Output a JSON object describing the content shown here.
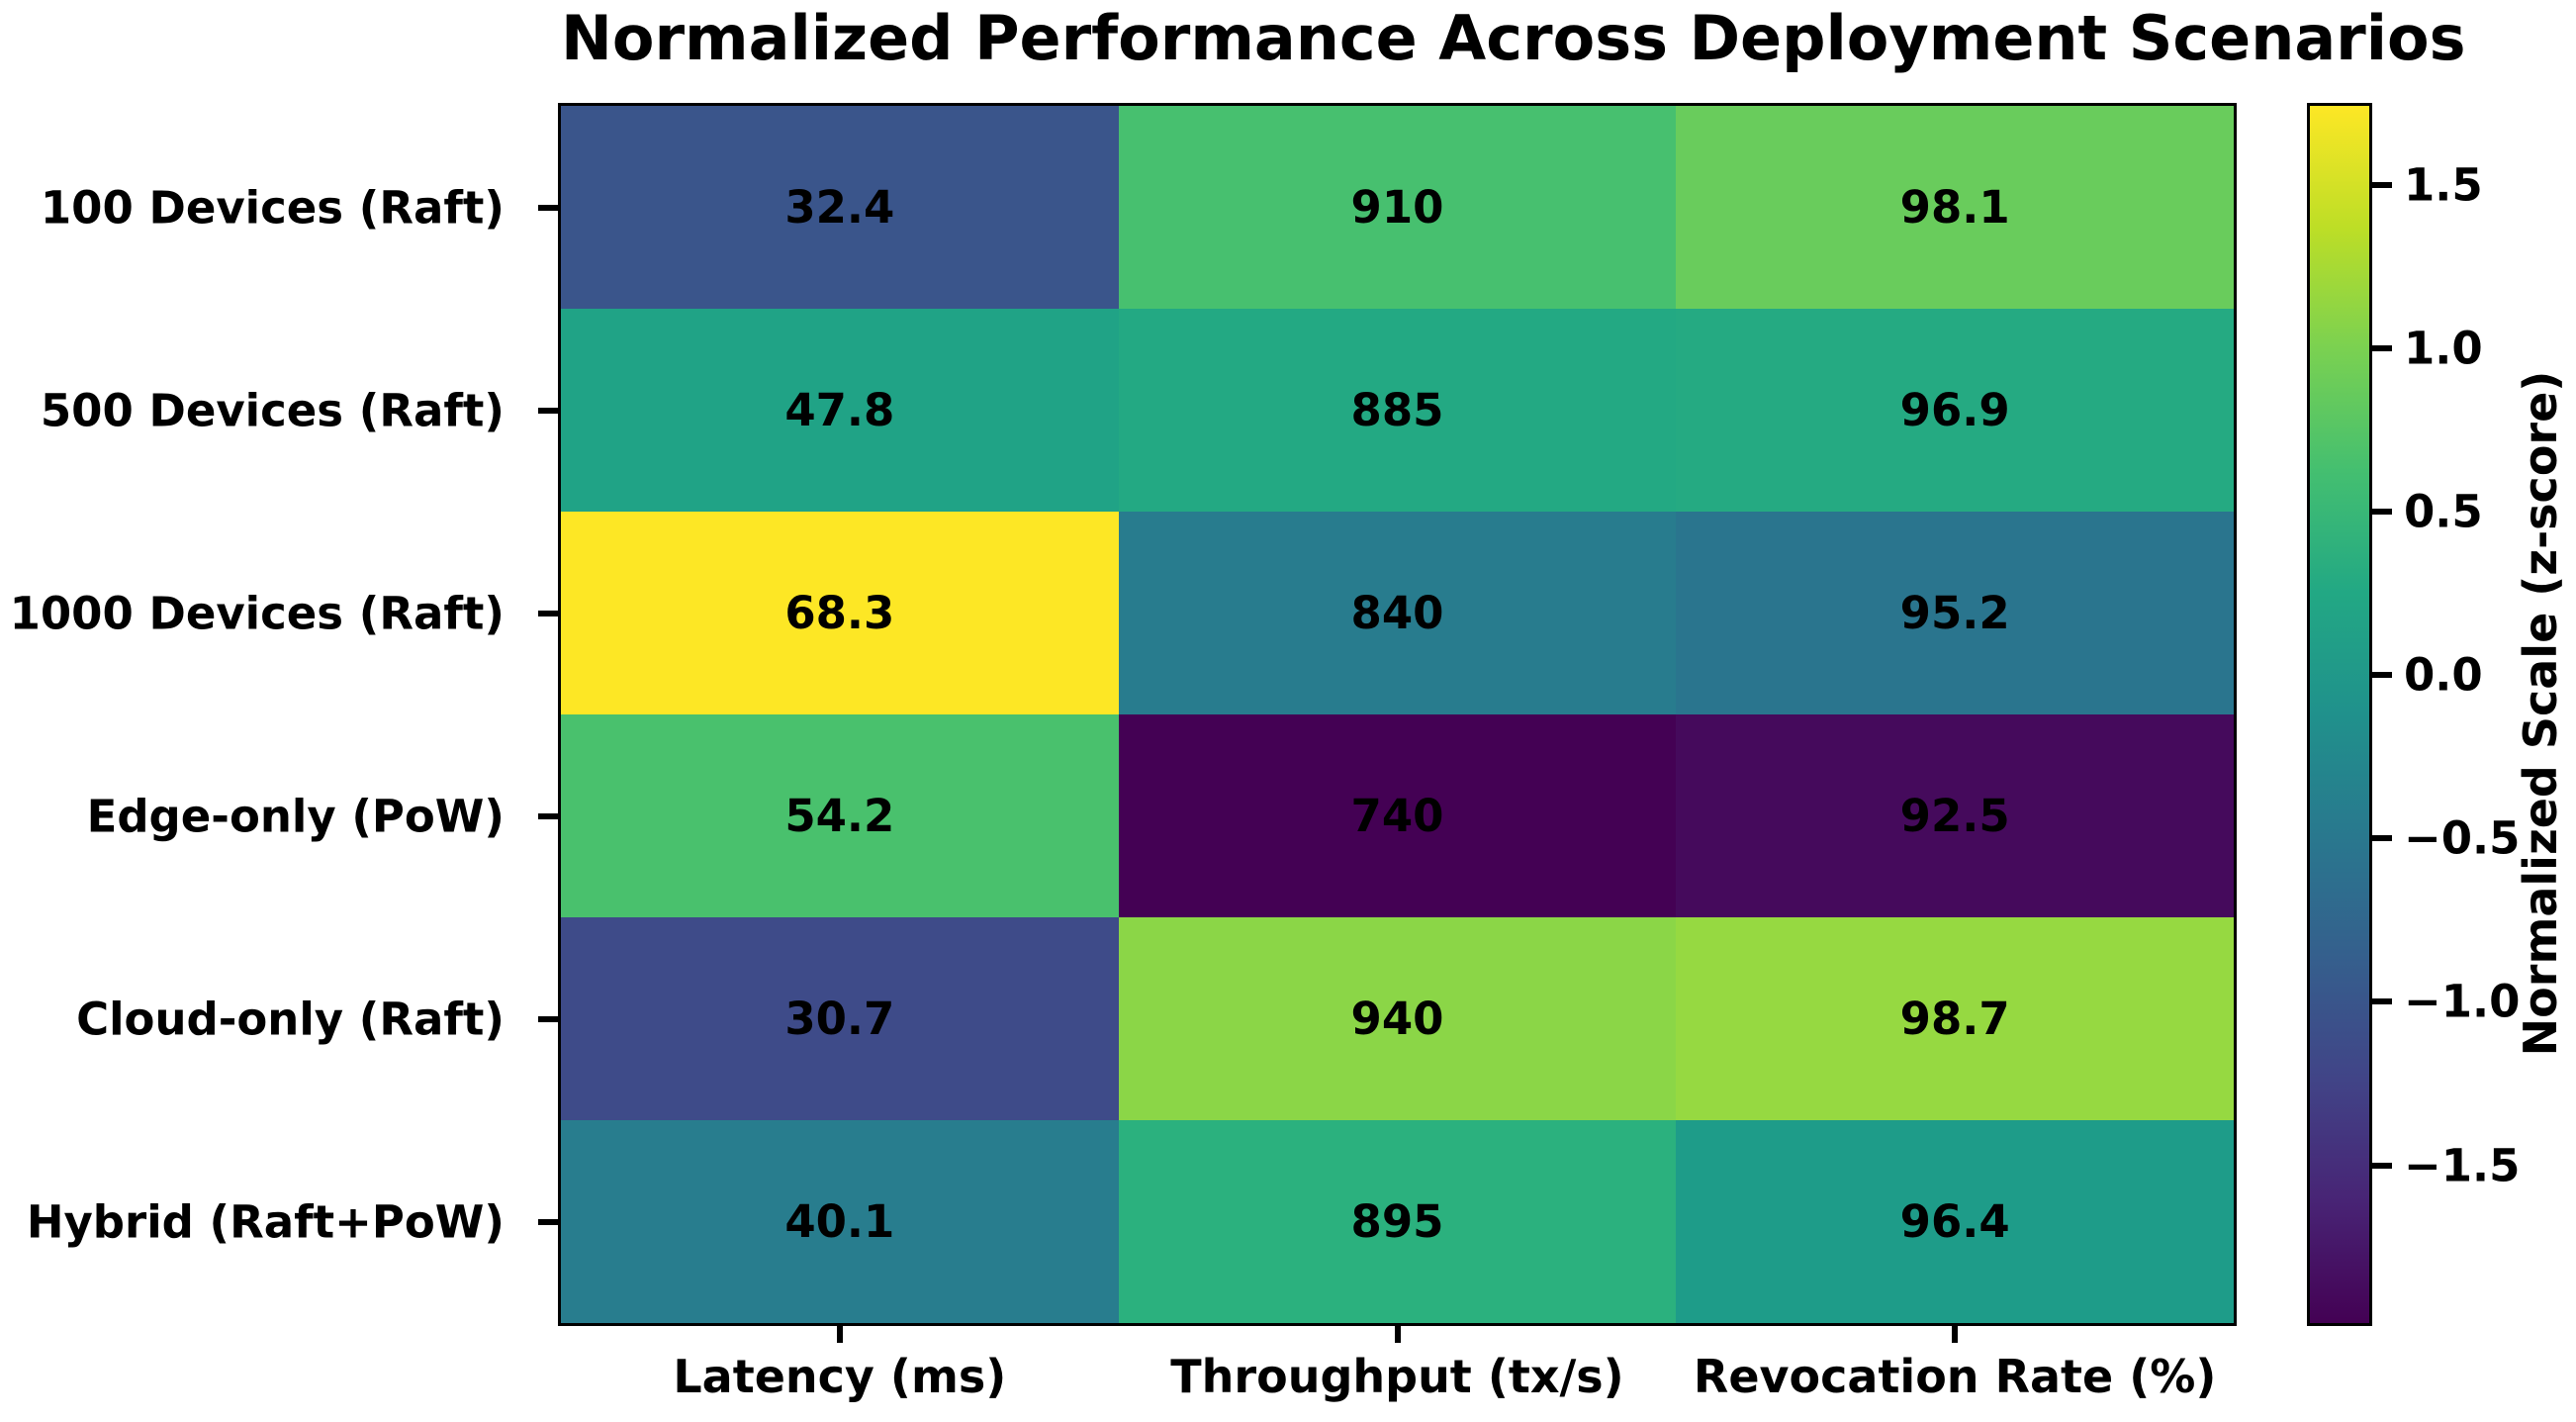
{
  "chart_data": {
    "type": "heatmap",
    "title": "Normalized Performance Across Deployment Scenarios",
    "rows": [
      "100 Devices (Raft)",
      "500 Devices (Raft)",
      "1000 Devices (Raft)",
      "Edge-only (PoW)",
      "Cloud-only (Raft)",
      "Hybrid (Raft+PoW)"
    ],
    "columns": [
      "Latency (ms)",
      "Throughput (tx/s)",
      "Revocation Rate (%)"
    ],
    "values": [
      [
        32.4,
        910,
        98.1
      ],
      [
        47.8,
        885,
        96.9
      ],
      [
        68.3,
        840,
        95.2
      ],
      [
        54.2,
        740,
        92.5
      ],
      [
        30.7,
        940,
        98.7
      ],
      [
        40.1,
        895,
        96.4
      ]
    ],
    "cell_colors": [
      [
        "#3a558b",
        "#47c06f",
        "#69cc5c"
      ],
      [
        "#20a386",
        "#23a983",
        "#25aa82"
      ],
      [
        "#fde725",
        "#287c8e",
        "#2a758e"
      ],
      [
        "#49c16d",
        "#440154",
        "#450a5c"
      ],
      [
        "#3e4b89",
        "#8bd647",
        "#96d941"
      ],
      [
        "#287d8e",
        "#2bb17e",
        "#1e9c89"
      ]
    ],
    "normalization": "z-score per column",
    "colormap": "viridis",
    "colorbar": {
      "label": "Normalized Scale (z-score)",
      "vmin": -1.9828,
      "vmax": 1.7418,
      "ticks": [
        1.5,
        1.0,
        0.5,
        0.0,
        -0.5,
        -1.0,
        -1.5
      ],
      "tick_labels": [
        "1.5",
        "1.0",
        "0.5",
        "0.0",
        "−0.5",
        "−1.0",
        "−1.5"
      ],
      "gradient_stops": [
        "#440154",
        "#482475",
        "#414487",
        "#355f8d",
        "#29788e",
        "#20918c",
        "#22a884",
        "#44bf70",
        "#7ad151",
        "#bdde26",
        "#fde725"
      ]
    }
  }
}
